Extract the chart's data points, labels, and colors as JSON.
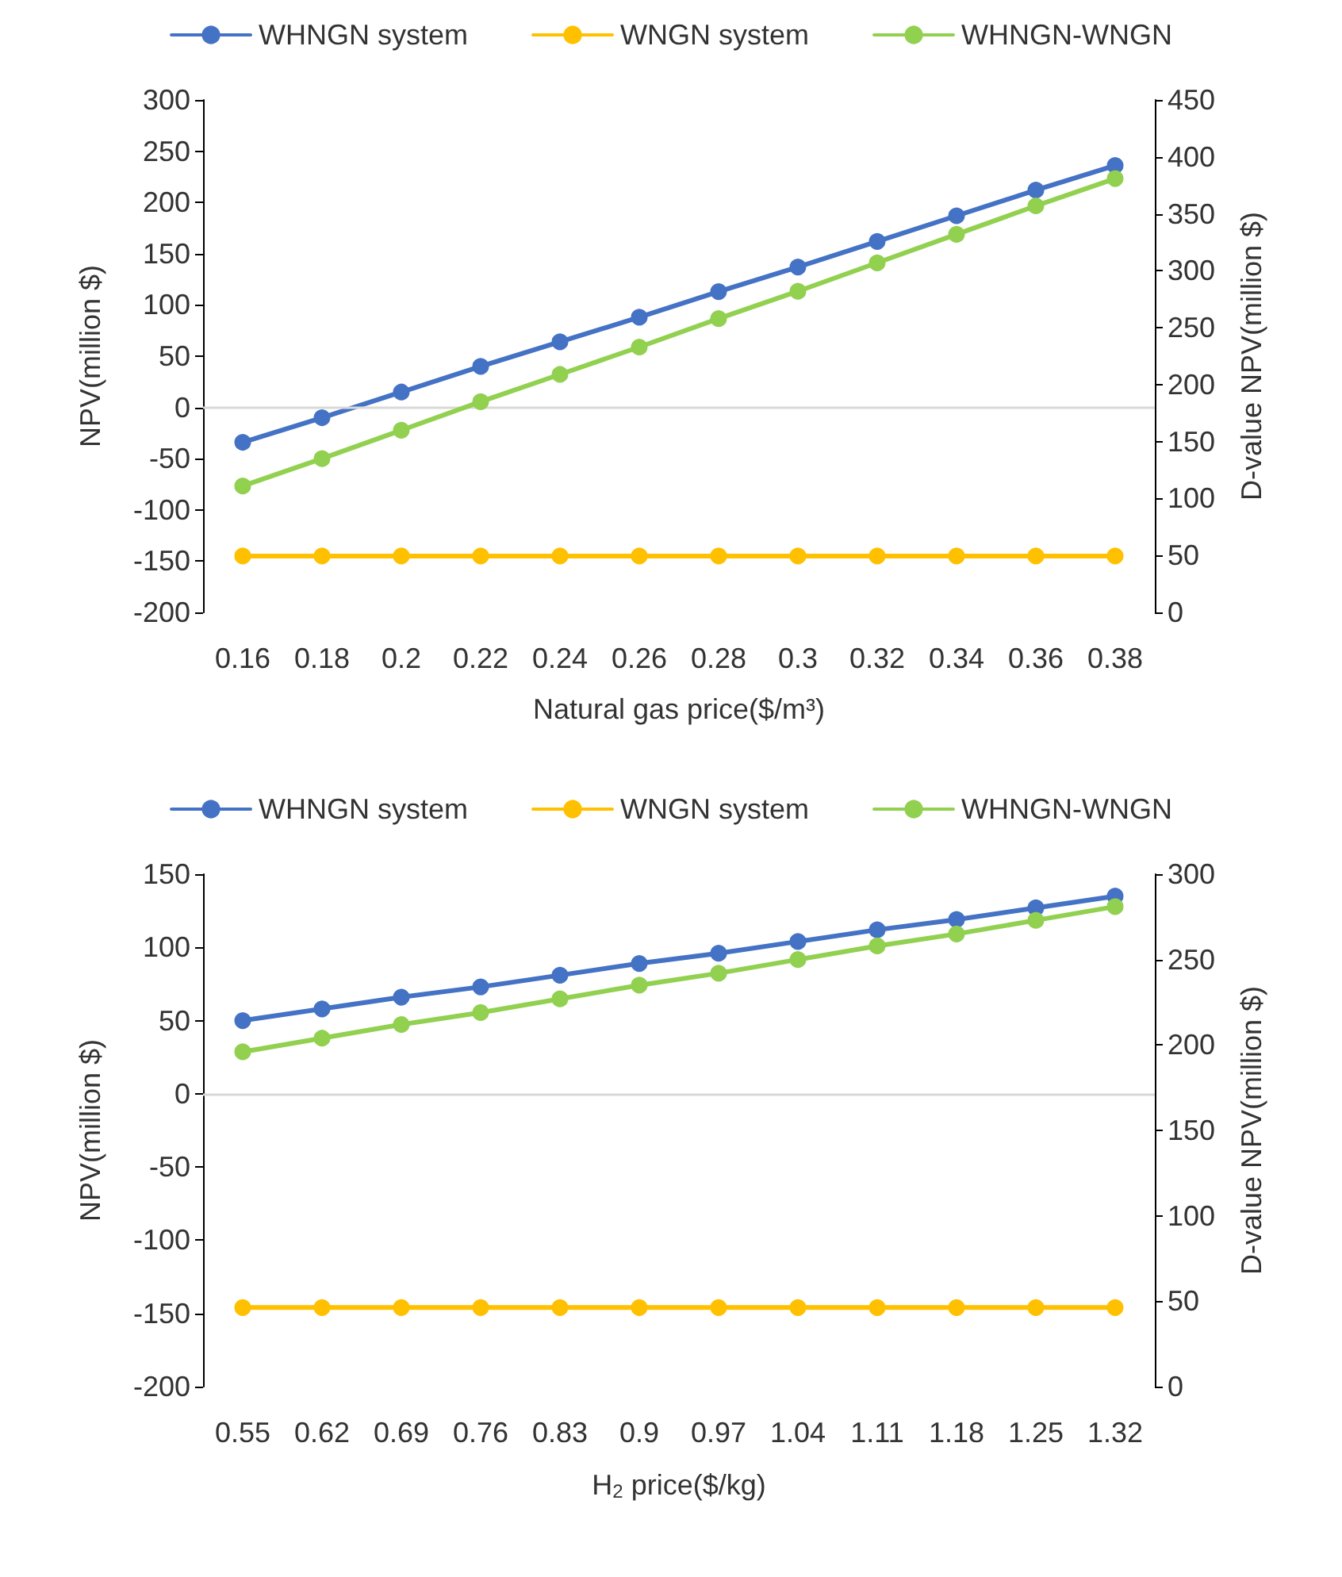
{
  "chart_data": [
    {
      "type": "line",
      "categories": [
        "0.16",
        "0.18",
        "0.2",
        "0.22",
        "0.24",
        "0.26",
        "0.28",
        "0.3",
        "0.32",
        "0.34",
        "0.36",
        "0.38"
      ],
      "xlabel": "Natural gas price($/m³)",
      "ylabel": "NPV(million $)",
      "y2label": "D-value NPV(million $)",
      "ylim": [
        -200,
        300
      ],
      "yticks": [
        -200,
        -150,
        -100,
        -50,
        0,
        50,
        100,
        150,
        200,
        250,
        300
      ],
      "y2lim": [
        0,
        450
      ],
      "y2ticks": [
        0,
        50,
        100,
        150,
        200,
        250,
        300,
        350,
        400,
        450
      ],
      "legend": "top",
      "grid": false,
      "marker": "circle",
      "ref_lines": [
        {
          "axis": "y",
          "value": 0,
          "color": "#d9d9d9"
        }
      ],
      "series": [
        {
          "name": "WHNGN system",
          "color": "#4472c4",
          "values": [
            -34,
            -10,
            15,
            40,
            64,
            88,
            113,
            137,
            162,
            187,
            212,
            236
          ]
        },
        {
          "name": "WNGN system",
          "color": "#ffc000",
          "values": [
            -145,
            -145,
            -145,
            -145,
            -145,
            -145,
            -145,
            -145,
            -145,
            -145,
            -145,
            -145
          ]
        },
        {
          "name": "WHNGN-WNGN",
          "color": "#92d050",
          "axis": "y2",
          "values": [
            111,
            135,
            160,
            185,
            209,
            233,
            258,
            282,
            307,
            332,
            357,
            381
          ]
        }
      ]
    },
    {
      "type": "line",
      "categories": [
        "0.55",
        "0.62",
        "0.69",
        "0.76",
        "0.83",
        "0.9",
        "0.97",
        "1.04",
        "1.11",
        "1.18",
        "1.25",
        "1.32"
      ],
      "xlabel": "H$_{2}$ price($/kg)",
      "ylabel": "NPV(million $)",
      "y2label": "D-value NPV(million $)",
      "ylim": [
        -200,
        150
      ],
      "yticks": [
        -200,
        -150,
        -100,
        -50,
        0,
        50,
        100,
        150
      ],
      "y2lim": [
        0,
        300
      ],
      "y2ticks": [
        0,
        50,
        100,
        150,
        200,
        250,
        300
      ],
      "legend": "top",
      "grid": false,
      "marker": "circle",
      "ref_lines": [
        {
          "axis": "y",
          "value": 0,
          "color": "#d9d9d9"
        }
      ],
      "series": [
        {
          "name": "WHNGN system",
          "color": "#4472c4",
          "values": [
            50,
            58,
            66,
            73,
            81,
            89,
            96,
            104,
            112,
            119,
            127,
            135
          ]
        },
        {
          "name": "WNGN system",
          "color": "#ffc000",
          "values": [
            -146,
            -146,
            -146,
            -146,
            -146,
            -146,
            -146,
            -146,
            -146,
            -146,
            -146,
            -146
          ]
        },
        {
          "name": "WHNGN-WNGN",
          "color": "#92d050",
          "axis": "y2",
          "values": [
            196,
            204,
            212,
            219,
            227,
            235,
            242,
            250,
            258,
            265,
            273,
            281
          ]
        }
      ]
    }
  ]
}
